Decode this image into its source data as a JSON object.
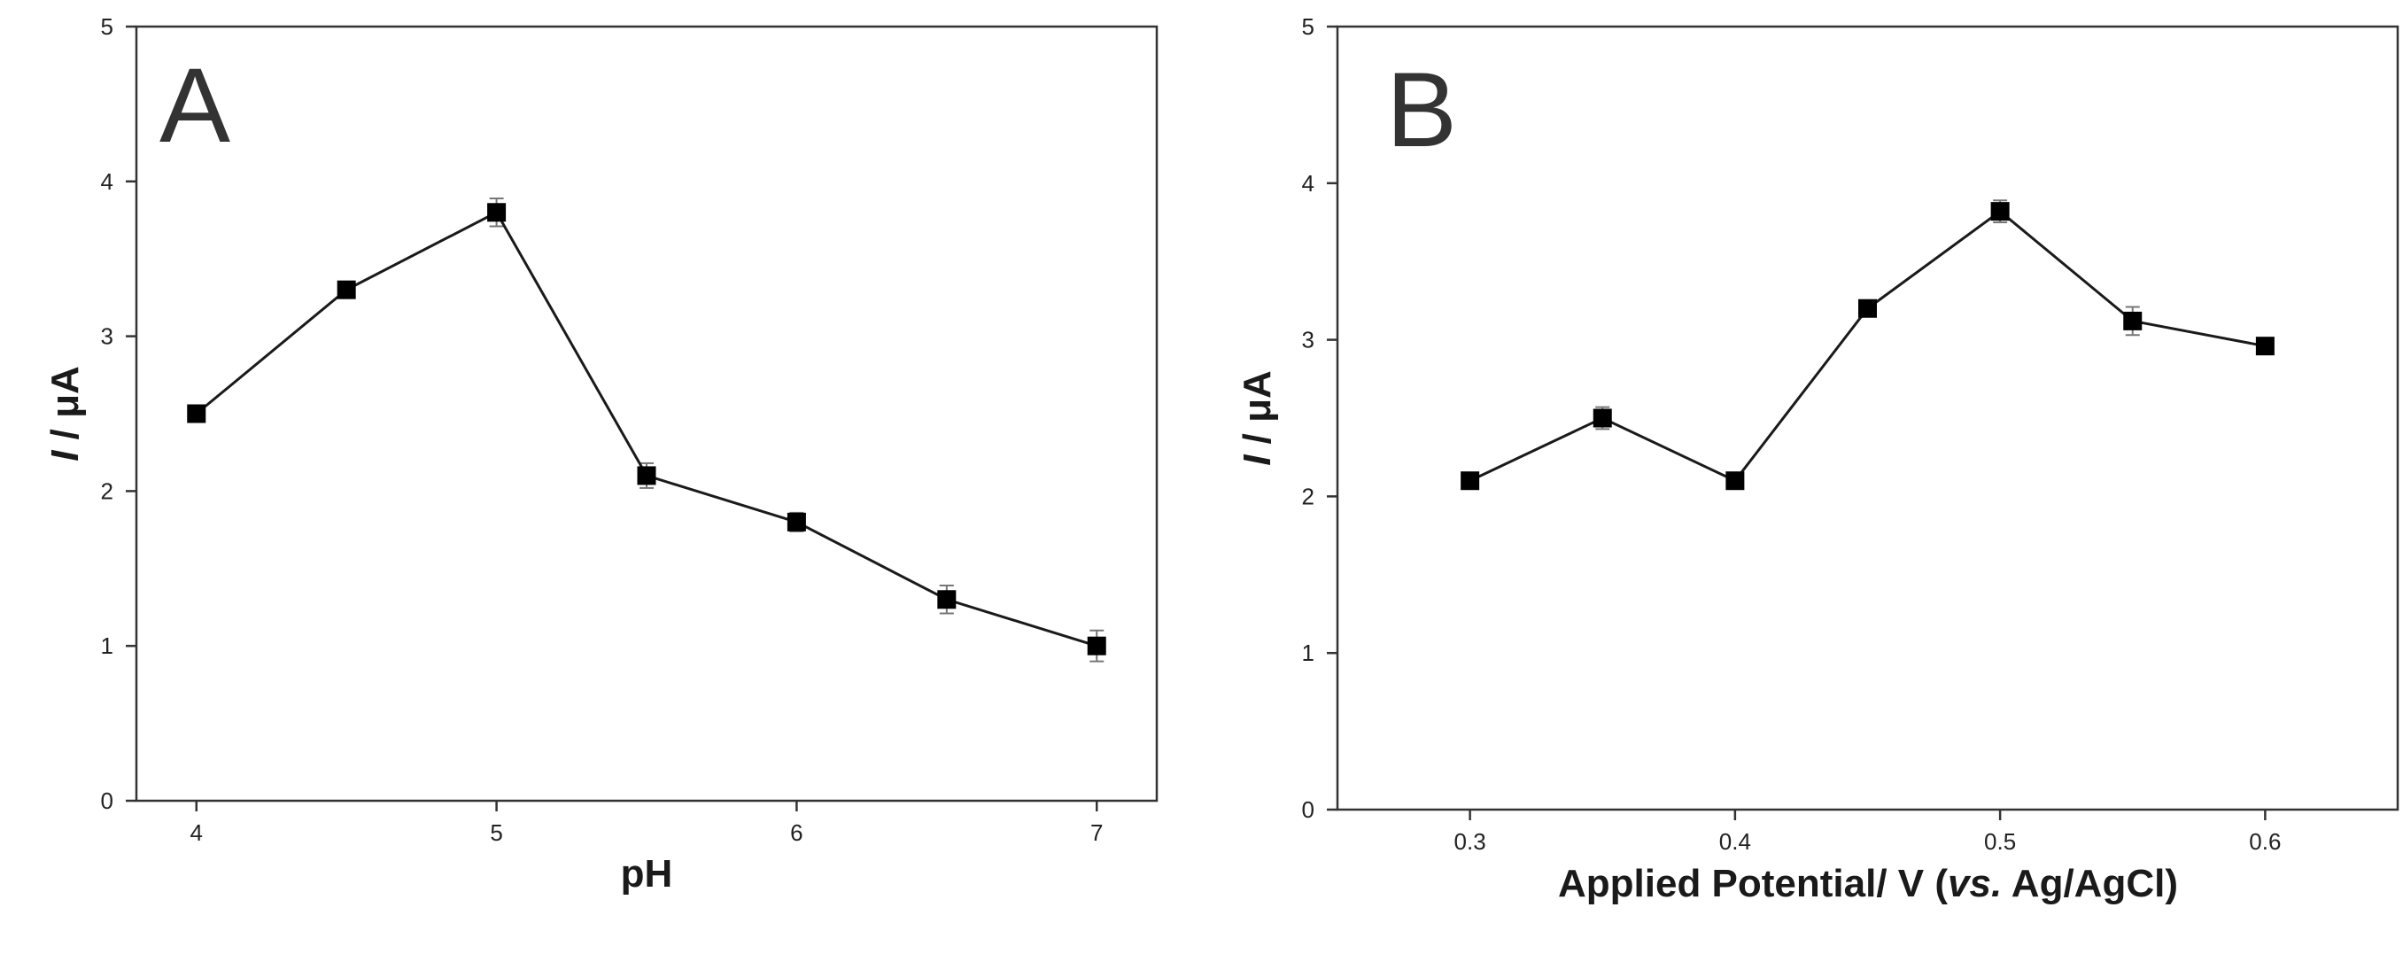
{
  "chart_data": [
    {
      "type": "line",
      "panel_label": "A",
      "title": "",
      "xlabel": "pH",
      "ylabel_italic": "I",
      "ylabel_rest": " / μA",
      "xlim": [
        3.8,
        7.2
      ],
      "ylim": [
        0,
        5
      ],
      "xticks": [
        4,
        5,
        6,
        7
      ],
      "yticks": [
        0,
        1,
        2,
        3,
        4,
        5
      ],
      "x": [
        4,
        4.5,
        5,
        5.5,
        6,
        6.5,
        7
      ],
      "values": [
        2.5,
        3.3,
        3.8,
        2.1,
        1.8,
        1.3,
        1.0
      ],
      "errors": [
        0.03,
        0.05,
        0.09,
        0.08,
        0.06,
        0.09,
        0.1
      ],
      "grid": false,
      "marker": "square",
      "color": "#000000"
    },
    {
      "type": "line",
      "panel_label": "B",
      "title": "",
      "xlabel_pre": "Applied Potential/ V (",
      "xlabel_italic": "vs.",
      "xlabel_post": " Ag/AgCl)",
      "ylabel_italic": "I",
      "ylabel_rest": " / μA",
      "xlim": [
        0.25,
        0.65
      ],
      "ylim": [
        0,
        5
      ],
      "xticks": [
        0.3,
        0.4,
        0.5,
        0.6
      ],
      "xtick_labels": [
        "0.3",
        "0.4",
        "0.5",
        "0.6"
      ],
      "yticks": [
        0,
        1,
        2,
        3,
        4,
        5
      ],
      "x": [
        0.3,
        0.35,
        0.4,
        0.45,
        0.5,
        0.55,
        0.6
      ],
      "values": [
        2.1,
        2.5,
        2.1,
        3.2,
        3.82,
        3.12,
        2.96
      ],
      "errors": [
        0.03,
        0.07,
        0.04,
        0.04,
        0.07,
        0.09,
        0.03
      ],
      "grid": false,
      "marker": "square",
      "color": "#000000"
    }
  ]
}
